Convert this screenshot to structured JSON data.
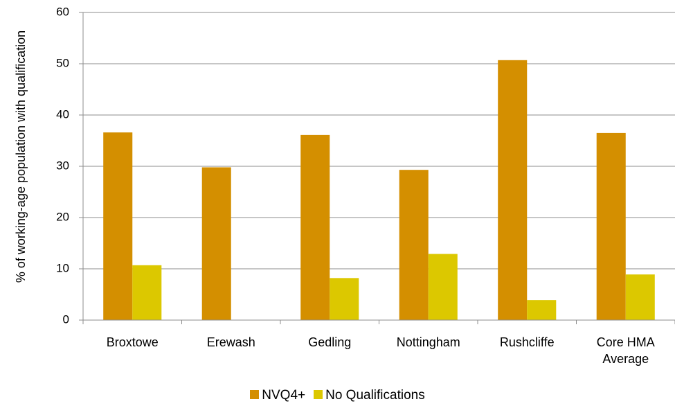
{
  "chart_data": {
    "type": "bar",
    "y_label": "% of working-age population with qualification",
    "categories": [
      "Broxtowe",
      "Erewash",
      "Gedling",
      "Nottingham",
      "Rushcliffe",
      "Core HMA Average"
    ],
    "series": [
      {
        "name": "NVQ4+",
        "color": "#d48f00",
        "values": [
          36.6,
          29.8,
          36.1,
          29.3,
          50.7,
          36.5
        ]
      },
      {
        "name": "No Qualifications",
        "color": "#dcc800",
        "values": [
          10.7,
          null,
          8.2,
          12.9,
          3.9,
          8.9
        ]
      }
    ],
    "ylim": [
      0,
      60
    ],
    "yticks": [
      0,
      10,
      20,
      30,
      40,
      50,
      60
    ],
    "grid": true,
    "legend": "bottom"
  }
}
